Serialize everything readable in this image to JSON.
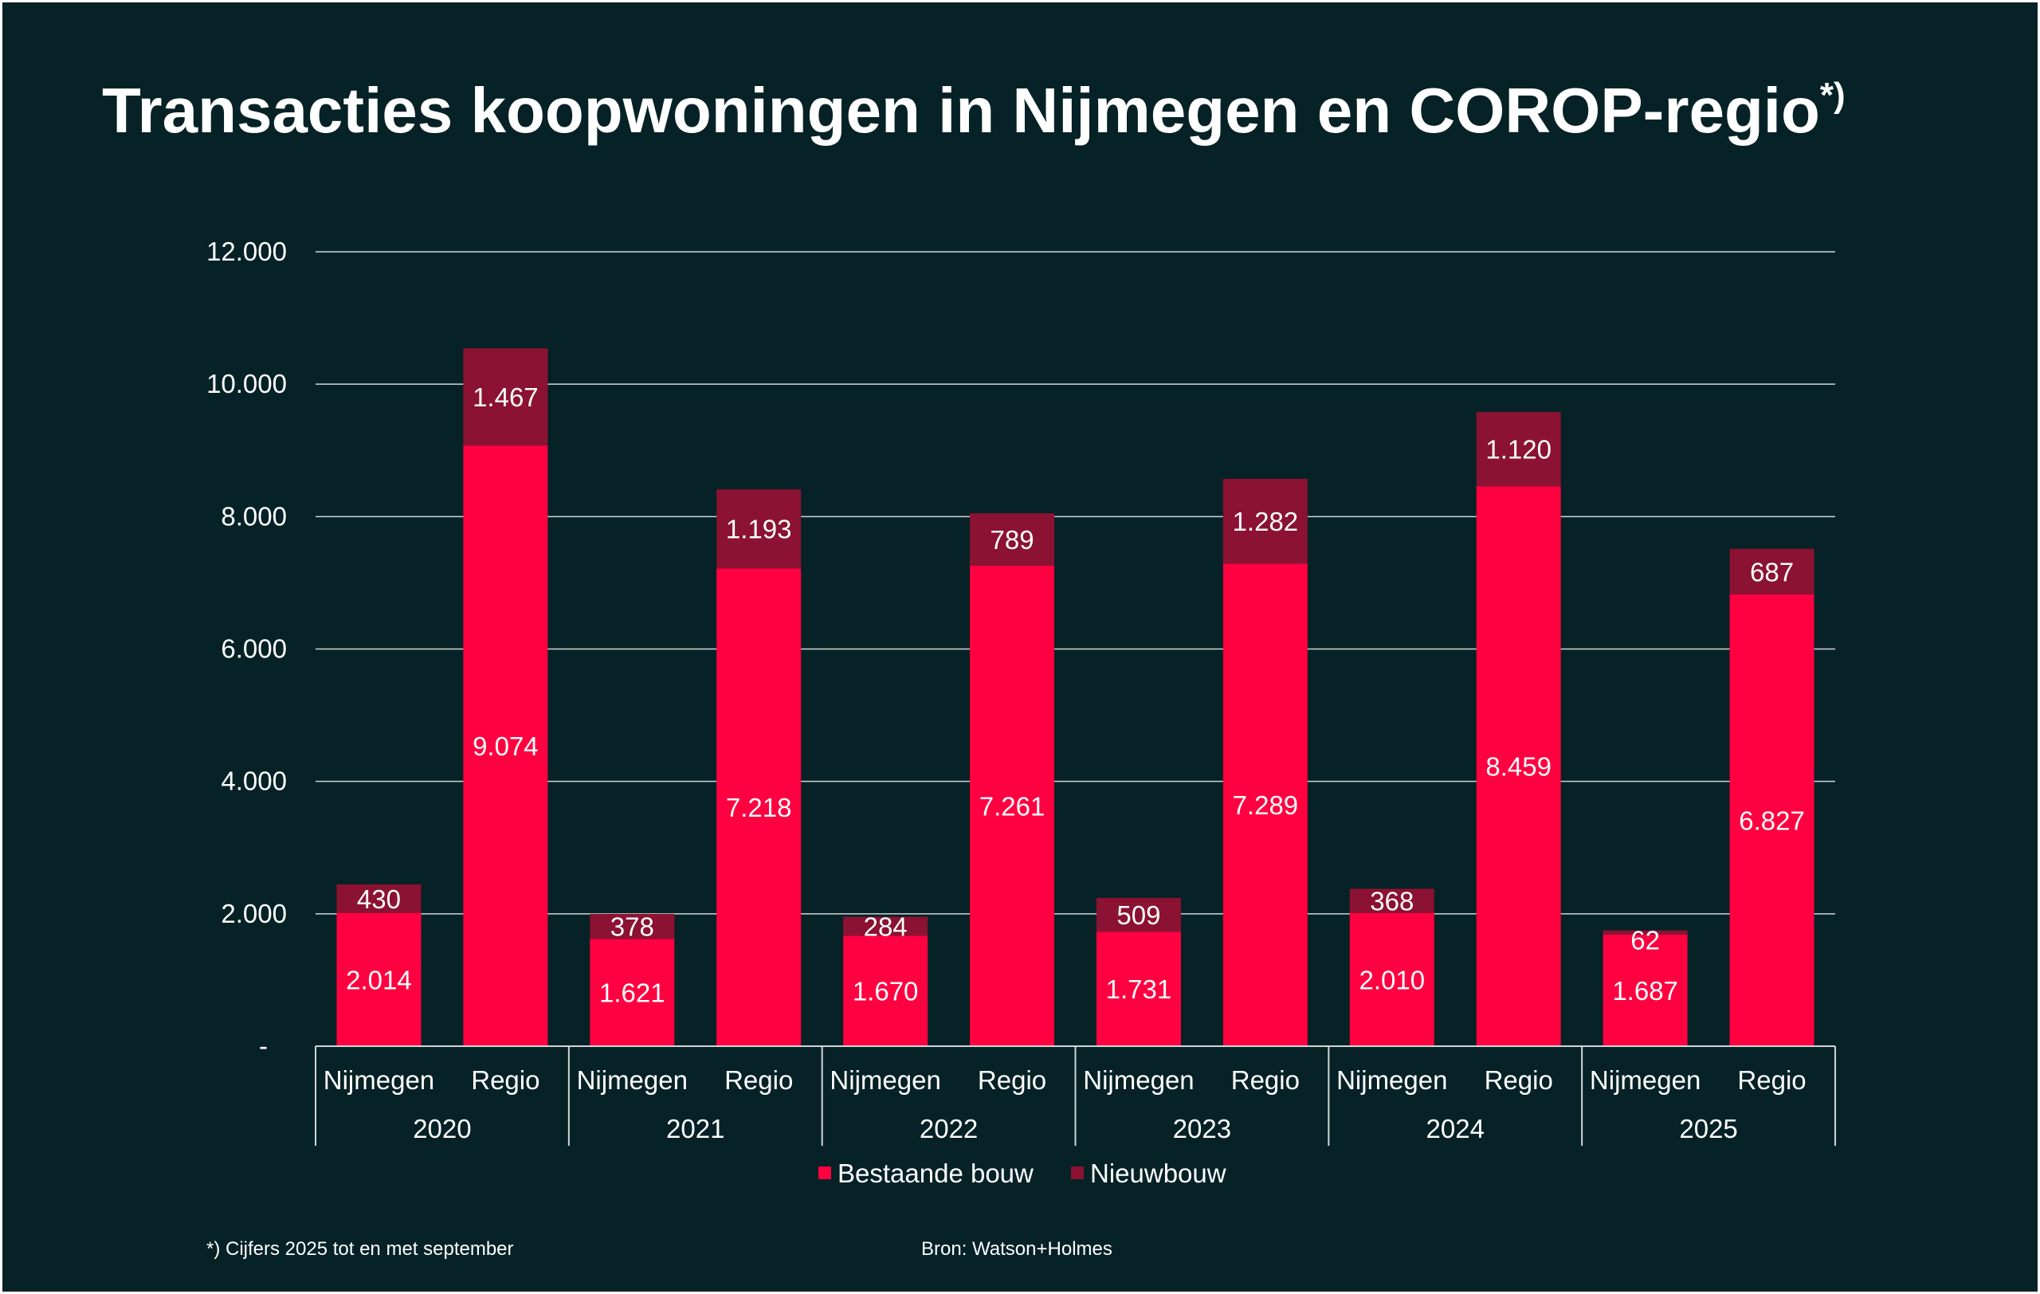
{
  "title": "Transacties koopwoningen in Nijmegen en COROP-regio",
  "title_superscript": "*)",
  "footnote": "*) Cijfers 2025 tot en met september",
  "source": "Bron: Watson+Holmes",
  "colors": {
    "background": "#062226",
    "bestaande_bouw": "#ff0040",
    "nieuwbouw": "#8b1232",
    "gridline": "#cfd6d8"
  },
  "chart_data": {
    "type": "bar",
    "stacked": true,
    "title": "Transacties koopwoningen in Nijmegen en COROP-regio",
    "ylim": [
      0,
      12000
    ],
    "yticks": [
      {
        "value": 0,
        "label": "-"
      },
      {
        "value": 2000,
        "label": "2.000"
      },
      {
        "value": 4000,
        "label": "4.000"
      },
      {
        "value": 6000,
        "label": "6.000"
      },
      {
        "value": 8000,
        "label": "8.000"
      },
      {
        "value": 10000,
        "label": "10.000"
      },
      {
        "value": 12000,
        "label": "12.000"
      }
    ],
    "groups": [
      "2020",
      "2021",
      "2022",
      "2023",
      "2024",
      "2025"
    ],
    "categories": [
      "Nijmegen",
      "Regio",
      "Nijmegen",
      "Regio",
      "Nijmegen",
      "Regio",
      "Nijmegen",
      "Regio",
      "Nijmegen",
      "Regio",
      "Nijmegen",
      "Regio"
    ],
    "series": [
      {
        "name": "Bestaande bouw",
        "color": "#ff0040",
        "values": [
          2014,
          9074,
          1621,
          7218,
          1670,
          7261,
          1731,
          7289,
          2010,
          8459,
          1687,
          6827
        ],
        "labels": [
          "2.014",
          "9.074",
          "1.621",
          "7.218",
          "1.670",
          "7.261",
          "1.731",
          "7.289",
          "2.010",
          "8.459",
          "1.687",
          "6.827"
        ]
      },
      {
        "name": "Nieuwbouw",
        "color": "#8b1232",
        "values": [
          430,
          1467,
          378,
          1193,
          284,
          789,
          509,
          1282,
          368,
          1120,
          62,
          687
        ],
        "labels": [
          "430",
          "1.467",
          "378",
          "1.193",
          "284",
          "789",
          "509",
          "1.282",
          "368",
          "1.120",
          "62",
          "687"
        ]
      }
    ],
    "legend": {
      "position": "bottom",
      "entries": [
        "Bestaande bouw",
        "Nieuwbouw"
      ]
    },
    "grid": true
  }
}
